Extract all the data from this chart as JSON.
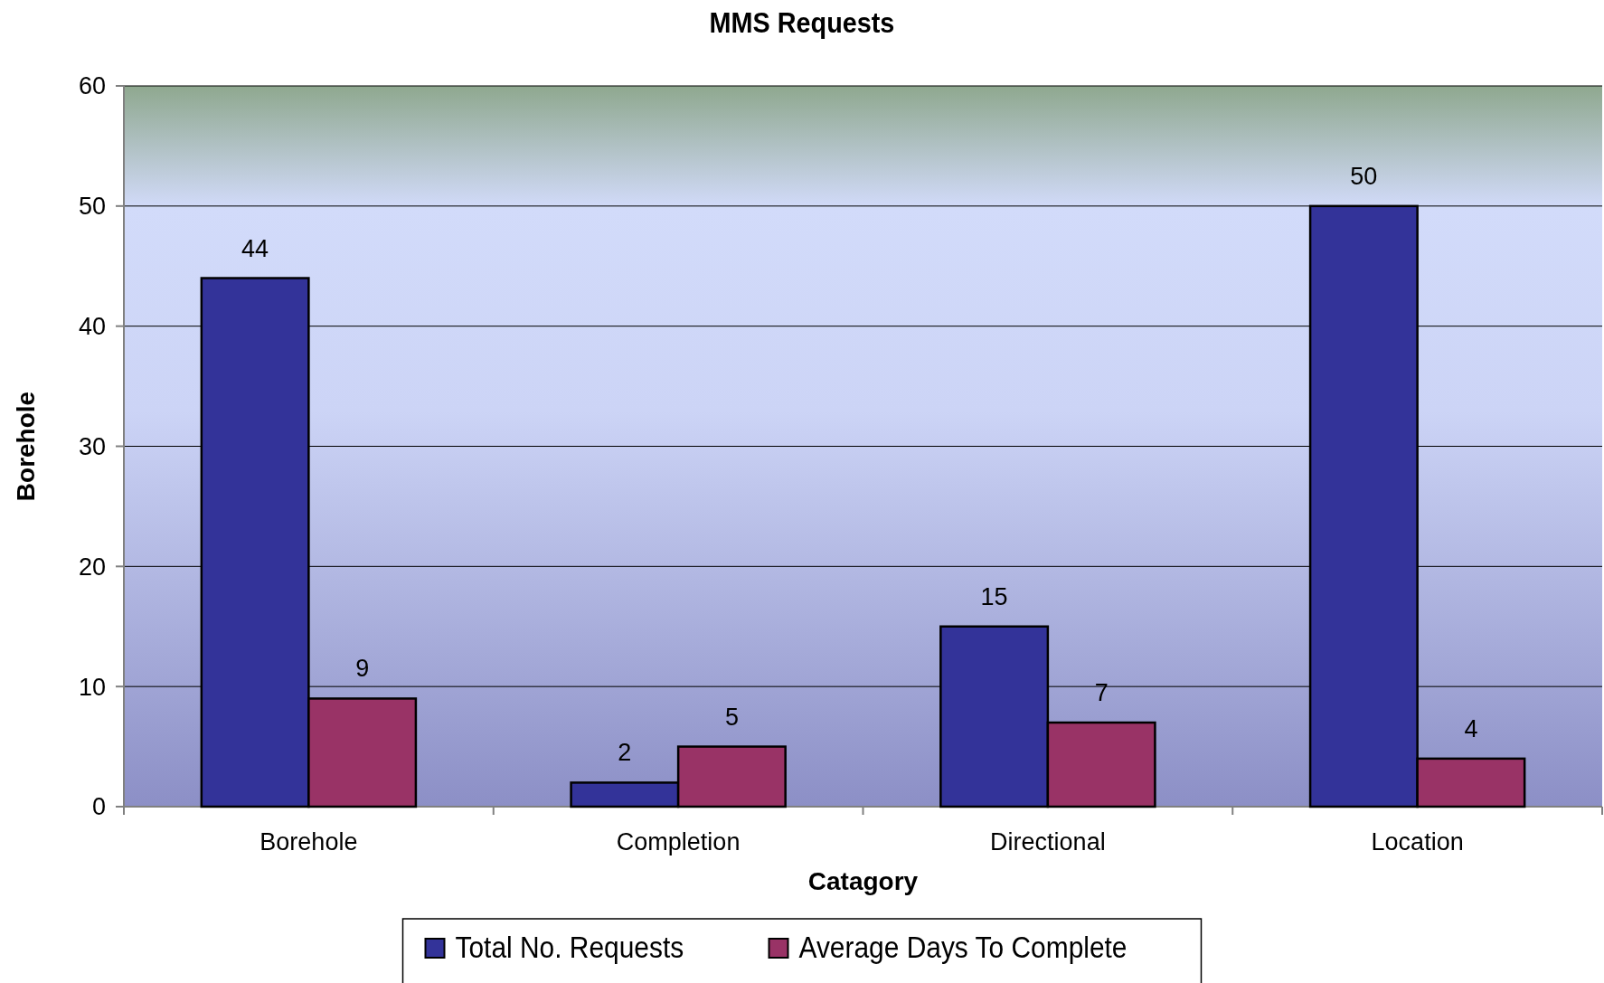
{
  "chart_data": {
    "type": "bar",
    "title": "MMS Requests",
    "xlabel": "Catagory",
    "ylabel": "Borehole",
    "categories": [
      "Borehole",
      "Completion",
      "Directional",
      "Location"
    ],
    "series": [
      {
        "name": "Total No. Requests",
        "color": "#333399",
        "values": [
          44,
          2,
          15,
          50
        ]
      },
      {
        "name": "Average Days To Complete",
        "color": "#993366",
        "values": [
          9,
          5,
          7,
          4
        ]
      }
    ],
    "ylim": [
      0,
      60
    ],
    "yticks": [
      0,
      10,
      20,
      30,
      40,
      50,
      60
    ],
    "grid": "y",
    "legend": "bottom",
    "data_labels": true
  }
}
